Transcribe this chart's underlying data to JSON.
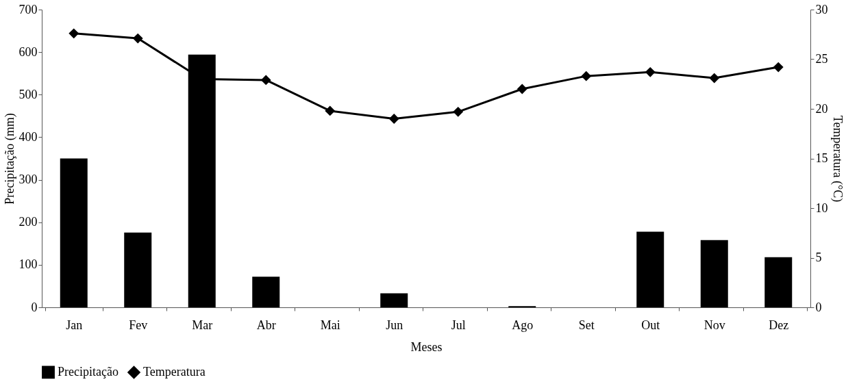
{
  "chart_data": {
    "type": "bar",
    "xlabel": "Meses",
    "ylabel": "Precipitação (mm)",
    "y2label": "Temperatura (°C)",
    "categories": [
      "Jan",
      "Fev",
      "Mar",
      "Abr",
      "Mai",
      "Jun",
      "Jul",
      "Ago",
      "Set",
      "Out",
      "Nov",
      "Dez"
    ],
    "series": [
      {
        "name": "Precipitação",
        "color": "#000000",
        "values": [
          350,
          176,
          594,
          72,
          0,
          33,
          0,
          3,
          0,
          178,
          158,
          118
        ]
      },
      {
        "name": "Temperatura",
        "type": "line",
        "axis": "y2",
        "color": "#000000",
        "marker": "diamond",
        "values": [
          27.6,
          27.1,
          23.0,
          22.9,
          19.8,
          19.0,
          19.7,
          22.0,
          23.3,
          23.7,
          23.1,
          24.2
        ]
      }
    ],
    "ylim": [
      0,
      700
    ],
    "yticks": [
      0,
      100,
      200,
      300,
      400,
      500,
      600,
      700
    ],
    "y2lim": [
      0,
      30
    ],
    "y2ticks": [
      0,
      5,
      10,
      15,
      20,
      25,
      30
    ],
    "grid": false,
    "legend": "bottom"
  }
}
